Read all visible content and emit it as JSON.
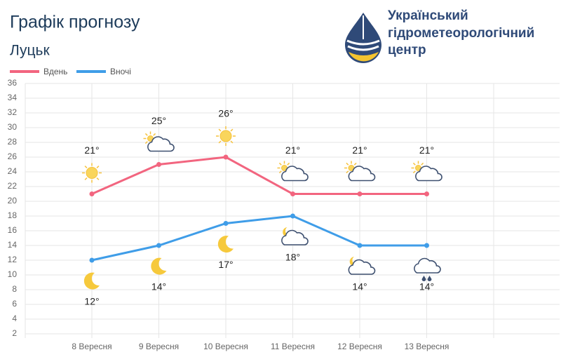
{
  "header": {
    "title": "Графік прогнозу",
    "subtitle": "Луцьк",
    "logo_lines": [
      "Український",
      "гідрометеорологічний",
      "центр"
    ]
  },
  "chart_data": {
    "type": "line",
    "categories": [
      "8 Вересня",
      "9 Вересня",
      "10 Вересня",
      "11 Вересня",
      "12 Вересня",
      "13 Вересня"
    ],
    "series": [
      {
        "name": "Вдень",
        "color": "#f2657f",
        "values": [
          21,
          25,
          26,
          21,
          21,
          21
        ],
        "value_labels": [
          "21°",
          "25°",
          "26°",
          "21°",
          "21°",
          "21°"
        ]
      },
      {
        "name": "Вночі",
        "color": "#3f9de8",
        "values": [
          12,
          14,
          17,
          18,
          14,
          14
        ],
        "value_labels": [
          "12°",
          "14°",
          "17°",
          "18°",
          "14°",
          "14°"
        ]
      }
    ],
    "ylim": [
      2,
      36
    ],
    "yticks": [
      2,
      4,
      6,
      8,
      10,
      12,
      14,
      16,
      18,
      20,
      22,
      24,
      26,
      28,
      30,
      32,
      34,
      36
    ],
    "grid": true
  }
}
